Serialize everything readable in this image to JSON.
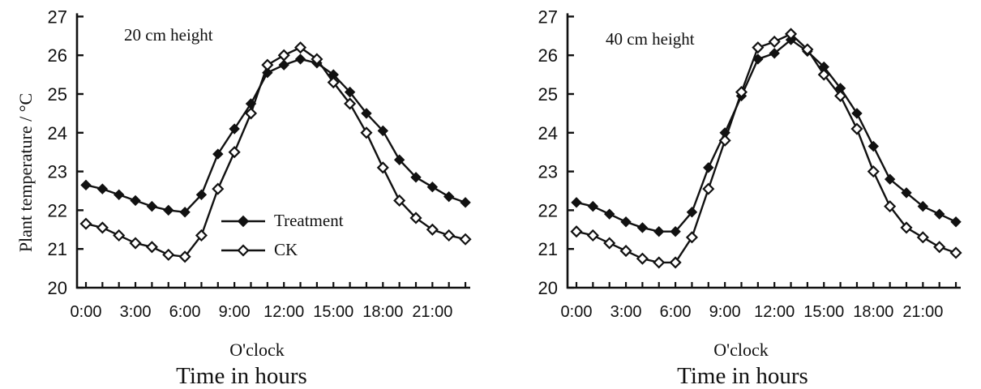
{
  "colors": {
    "line": "#111111",
    "marker_filled": "#111111",
    "marker_open_fill": "#ffffff",
    "background": "#ffffff"
  },
  "chart_data": [
    {
      "type": "line",
      "title": "20 cm height",
      "ylabel": "Plant temperature / °C",
      "xlabel": "O'clock",
      "xlabel2": "Time in hours",
      "ylim": [
        20,
        27
      ],
      "y_ticks": [
        20,
        21,
        22,
        23,
        24,
        25,
        26,
        27
      ],
      "x": [
        0,
        1,
        2,
        3,
        4,
        5,
        6,
        7,
        8,
        9,
        10,
        11,
        12,
        13,
        14,
        15,
        16,
        17,
        18,
        19,
        20,
        21,
        22,
        23
      ],
      "x_tick_hours": [
        0,
        3,
        6,
        9,
        12,
        15,
        18,
        21
      ],
      "x_tick_labels": [
        "0:00",
        "3:00",
        "6:00",
        "9:00",
        "12:00",
        "15:00",
        "18:00",
        "21:00"
      ],
      "grid": false,
      "legend_position": "inside-center-left",
      "series": [
        {
          "name": "Treatment",
          "marker": "filled-diamond",
          "values": [
            22.65,
            22.55,
            22.4,
            22.25,
            22.1,
            22.0,
            21.95,
            22.4,
            23.45,
            24.1,
            24.75,
            25.55,
            25.75,
            25.9,
            25.8,
            25.5,
            25.05,
            24.5,
            24.05,
            23.3,
            22.85,
            22.6,
            22.35,
            22.2
          ]
        },
        {
          "name": "CK",
          "marker": "open-diamond",
          "values": [
            21.65,
            21.55,
            21.35,
            21.15,
            21.05,
            20.85,
            20.8,
            21.35,
            22.55,
            23.5,
            24.5,
            25.75,
            26.0,
            26.2,
            25.9,
            25.3,
            24.75,
            24.0,
            23.1,
            22.25,
            21.8,
            21.5,
            21.35,
            21.25
          ]
        }
      ]
    },
    {
      "type": "line",
      "title": "40 cm height",
      "xlabel": "O'clock",
      "xlabel2": "Time in hours",
      "ylim": [
        20,
        27
      ],
      "y_ticks": [
        20,
        21,
        22,
        23,
        24,
        25,
        26,
        27
      ],
      "x": [
        0,
        1,
        2,
        3,
        4,
        5,
        6,
        7,
        8,
        9,
        10,
        11,
        12,
        13,
        14,
        15,
        16,
        17,
        18,
        19,
        20,
        21,
        22,
        23
      ],
      "x_tick_hours": [
        0,
        3,
        6,
        9,
        12,
        15,
        18,
        21
      ],
      "x_tick_labels": [
        "0:00",
        "3:00",
        "6:00",
        "9:00",
        "12:00",
        "15:00",
        "18:00",
        "21:00"
      ],
      "grid": false,
      "legend_position": "none",
      "series": [
        {
          "name": "Treatment",
          "marker": "filled-diamond",
          "values": [
            22.2,
            22.1,
            21.9,
            21.7,
            21.55,
            21.45,
            21.45,
            21.95,
            23.1,
            24.0,
            24.95,
            25.9,
            26.05,
            26.4,
            26.1,
            25.7,
            25.15,
            24.5,
            23.65,
            22.8,
            22.45,
            22.1,
            21.9,
            21.7
          ]
        },
        {
          "name": "CK",
          "marker": "open-diamond",
          "values": [
            21.45,
            21.35,
            21.15,
            20.95,
            20.75,
            20.65,
            20.65,
            21.3,
            22.55,
            23.8,
            25.05,
            26.2,
            26.35,
            26.55,
            26.15,
            25.5,
            24.95,
            24.1,
            23.0,
            22.1,
            21.55,
            21.3,
            21.05,
            20.9
          ]
        }
      ]
    }
  ]
}
